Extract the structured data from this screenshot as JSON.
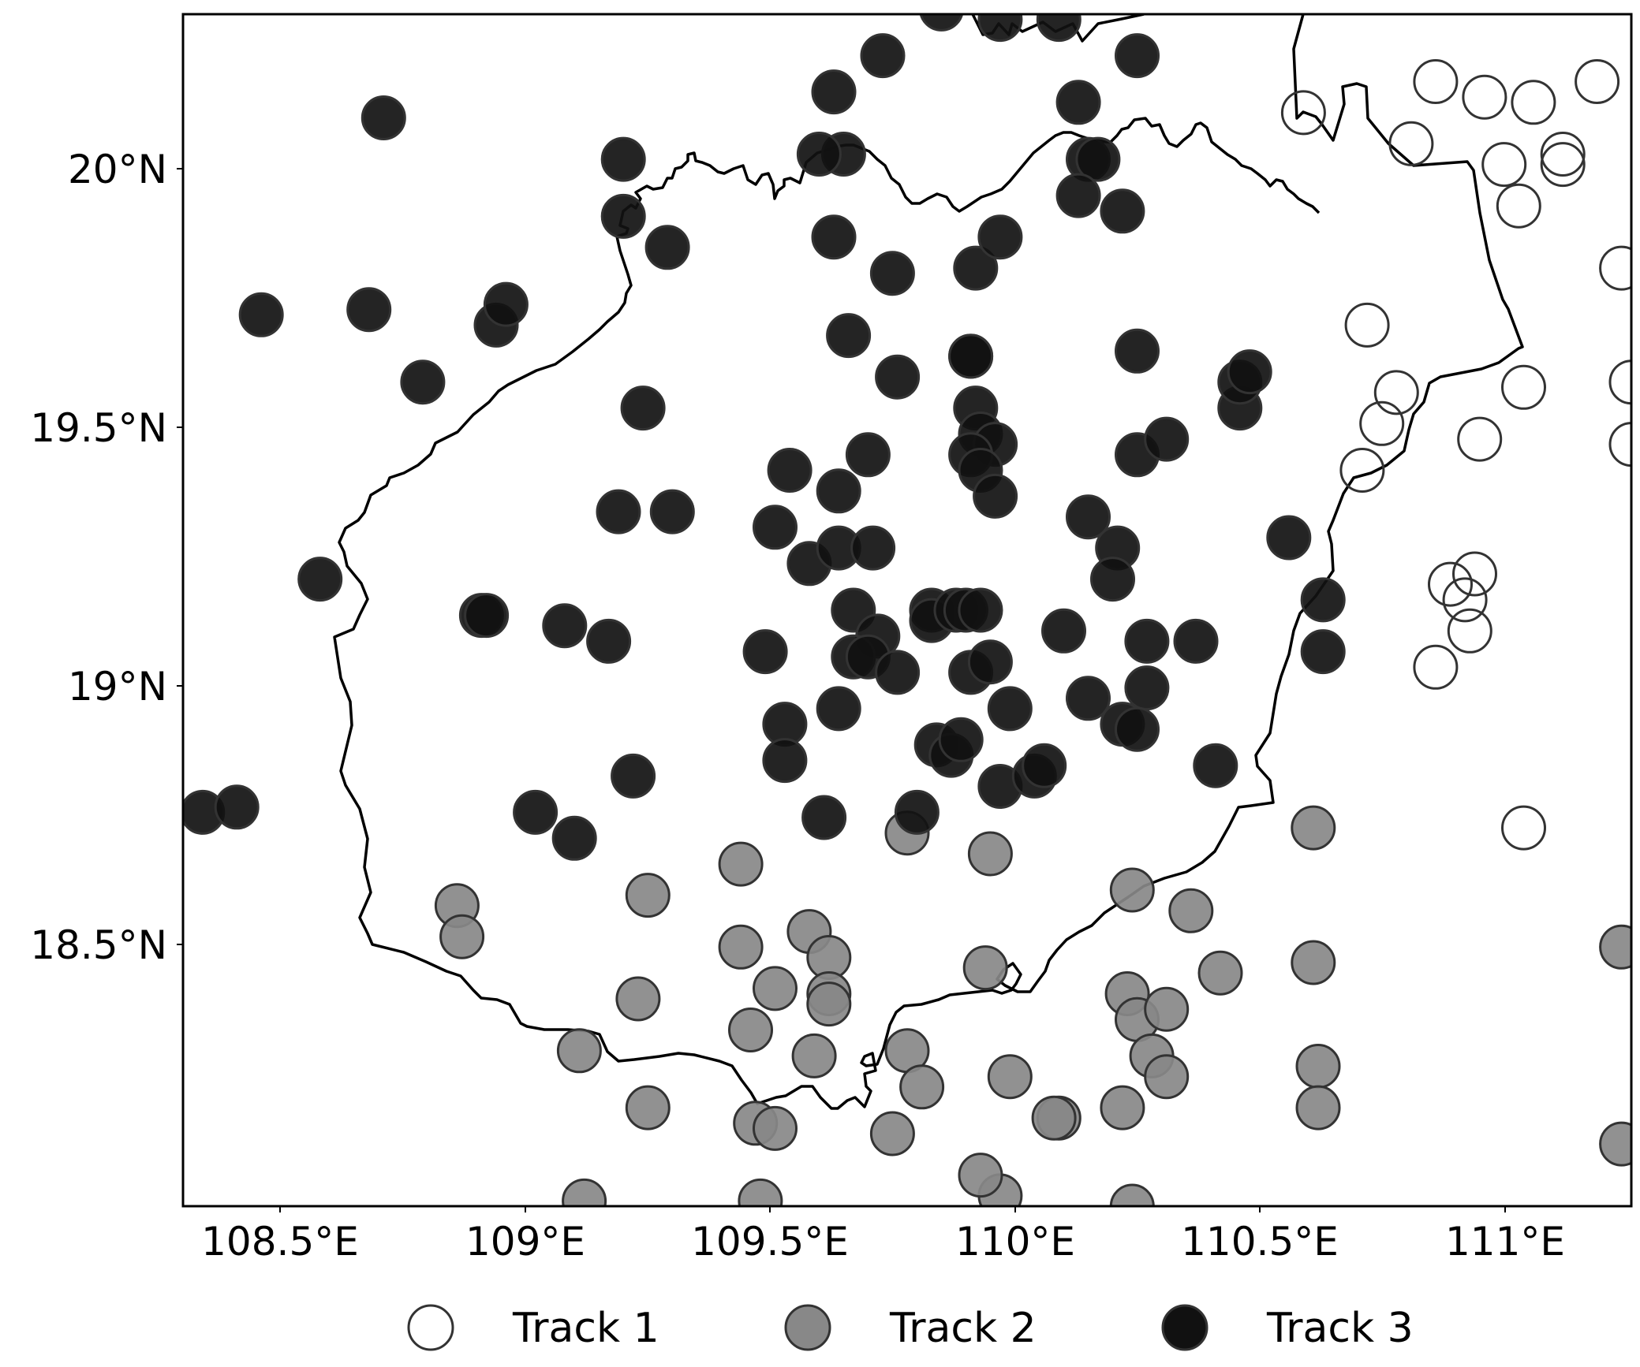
{
  "chart_data": {
    "type": "scatter",
    "map_region": "Hainan Island",
    "xlim": [
      108.31,
      111.27
    ],
    "ylim": [
      18.03,
      20.33
    ],
    "xticks": [
      108.5,
      109.0,
      109.5,
      110.0,
      110.5,
      111.0
    ],
    "yticks": [
      18.5,
      19.0,
      19.5,
      20.0
    ],
    "xtick_labels": [
      "108.5°E",
      "109°E",
      "109.5°E",
      "110°E",
      "110.5°E",
      "111°E"
    ],
    "ytick_labels": [
      "18.5°N",
      "19°N",
      "19.5°N",
      "20°N"
    ],
    "legend_position": "bottom",
    "series": [
      {
        "name": "Track 1",
        "color": "#ffffff",
        "points": [
          [
            110.6,
            20.14
          ],
          [
            110.87,
            20.2
          ],
          [
            110.97,
            20.17
          ],
          [
            111.07,
            20.16
          ],
          [
            111.2,
            20.2
          ],
          [
            110.82,
            20.08
          ],
          [
            111.01,
            20.04
          ],
          [
            111.13,
            20.06
          ],
          [
            111.13,
            20.04
          ],
          [
            111.04,
            19.96
          ],
          [
            111.25,
            19.84
          ],
          [
            110.73,
            19.73
          ],
          [
            110.79,
            19.6
          ],
          [
            110.76,
            19.54
          ],
          [
            110.96,
            19.51
          ],
          [
            111.05,
            19.61
          ],
          [
            111.27,
            19.62
          ],
          [
            111.27,
            19.5
          ],
          [
            110.72,
            19.45
          ],
          [
            110.9,
            19.23
          ],
          [
            110.95,
            19.25
          ],
          [
            110.93,
            19.2
          ],
          [
            110.94,
            19.14
          ],
          [
            110.87,
            19.07
          ],
          [
            111.05,
            18.76
          ]
        ]
      },
      {
        "name": "Track 2",
        "color": "#888888",
        "points": [
          [
            108.87,
            18.61
          ],
          [
            108.88,
            18.55
          ],
          [
            109.26,
            18.63
          ],
          [
            109.24,
            18.43
          ],
          [
            109.12,
            18.33
          ],
          [
            109.26,
            18.22
          ],
          [
            109.13,
            18.04
          ],
          [
            109.45,
            18.69
          ],
          [
            109.45,
            18.53
          ],
          [
            109.52,
            18.45
          ],
          [
            109.47,
            18.37
          ],
          [
            109.59,
            18.56
          ],
          [
            109.63,
            18.51
          ],
          [
            109.63,
            18.44
          ],
          [
            109.6,
            18.32
          ],
          [
            109.63,
            18.42
          ],
          [
            109.79,
            18.75
          ],
          [
            109.96,
            18.71
          ],
          [
            109.95,
            18.49
          ],
          [
            109.79,
            18.33
          ],
          [
            109.82,
            18.26
          ],
          [
            109.76,
            18.17
          ],
          [
            110.0,
            18.28
          ],
          [
            109.98,
            18.05
          ],
          [
            110.1,
            18.2
          ],
          [
            110.09,
            18.2
          ],
          [
            109.94,
            18.09
          ],
          [
            110.25,
            18.64
          ],
          [
            110.37,
            18.6
          ],
          [
            110.43,
            18.48
          ],
          [
            110.24,
            18.44
          ],
          [
            110.26,
            18.39
          ],
          [
            110.32,
            18.41
          ],
          [
            110.29,
            18.32
          ],
          [
            110.32,
            18.28
          ],
          [
            110.23,
            18.22
          ],
          [
            110.25,
            18.03
          ],
          [
            110.62,
            18.76
          ],
          [
            110.62,
            18.5
          ],
          [
            110.63,
            18.3
          ],
          [
            110.63,
            18.22
          ],
          [
            111.25,
            18.53
          ],
          [
            111.25,
            18.15
          ],
          [
            109.48,
            18.19
          ],
          [
            109.52,
            18.18
          ],
          [
            109.49,
            18.04
          ]
        ]
      },
      {
        "name": "Track 3",
        "color": "#111111",
        "points": [
          [
            108.47,
            19.75
          ],
          [
            108.69,
            19.76
          ],
          [
            108.72,
            20.13
          ],
          [
            108.8,
            19.62
          ],
          [
            108.95,
            19.73
          ],
          [
            108.97,
            19.77
          ],
          [
            109.21,
            20.05
          ],
          [
            109.21,
            19.94
          ],
          [
            109.3,
            19.88
          ],
          [
            109.25,
            19.57
          ],
          [
            109.2,
            19.37
          ],
          [
            109.31,
            19.37
          ],
          [
            108.59,
            19.24
          ],
          [
            108.92,
            19.17
          ],
          [
            108.93,
            19.17
          ],
          [
            109.09,
            19.15
          ],
          [
            109.18,
            19.12
          ],
          [
            108.35,
            18.79
          ],
          [
            108.42,
            18.8
          ],
          [
            109.03,
            18.79
          ],
          [
            109.11,
            18.74
          ],
          [
            109.23,
            18.86
          ],
          [
            109.5,
            19.1
          ],
          [
            109.55,
            19.45
          ],
          [
            109.52,
            19.34
          ],
          [
            109.59,
            19.27
          ],
          [
            109.64,
            20.18
          ],
          [
            109.66,
            20.06
          ],
          [
            109.61,
            20.06
          ],
          [
            109.64,
            19.9
          ],
          [
            109.67,
            19.71
          ],
          [
            109.74,
            20.25
          ],
          [
            109.76,
            19.83
          ],
          [
            109.77,
            19.63
          ],
          [
            109.71,
            19.48
          ],
          [
            109.65,
            19.41
          ],
          [
            109.65,
            19.3
          ],
          [
            109.72,
            19.3
          ],
          [
            109.68,
            19.18
          ],
          [
            109.73,
            19.13
          ],
          [
            109.68,
            19.09
          ],
          [
            109.71,
            19.09
          ],
          [
            109.77,
            19.06
          ],
          [
            109.65,
            18.99
          ],
          [
            109.54,
            18.96
          ],
          [
            109.54,
            18.89
          ],
          [
            109.62,
            18.78
          ],
          [
            109.81,
            18.79
          ],
          [
            109.84,
            19.18
          ],
          [
            109.84,
            19.16
          ],
          [
            109.89,
            19.18
          ],
          [
            109.92,
            19.06
          ],
          [
            109.96,
            19.08
          ],
          [
            109.85,
            18.92
          ],
          [
            109.88,
            18.9
          ],
          [
            109.9,
            18.93
          ],
          [
            109.98,
            18.84
          ],
          [
            110.0,
            18.99
          ],
          [
            110.05,
            18.86
          ],
          [
            110.07,
            18.88
          ],
          [
            109.93,
            19.84
          ],
          [
            109.98,
            19.9
          ],
          [
            109.92,
            19.67
          ],
          [
            109.92,
            19.67
          ],
          [
            109.93,
            19.57
          ],
          [
            109.94,
            19.52
          ],
          [
            109.97,
            19.5
          ],
          [
            109.92,
            19.48
          ],
          [
            109.94,
            19.45
          ],
          [
            109.97,
            19.4
          ],
          [
            109.91,
            19.18
          ],
          [
            109.94,
            19.18
          ],
          [
            110.11,
            19.14
          ],
          [
            110.14,
            20.16
          ],
          [
            110.16,
            20.05
          ],
          [
            110.18,
            20.05
          ],
          [
            110.14,
            19.98
          ],
          [
            110.23,
            19.95
          ],
          [
            110.26,
            20.25
          ],
          [
            110.26,
            19.68
          ],
          [
            110.26,
            19.48
          ],
          [
            110.32,
            19.51
          ],
          [
            110.16,
            19.36
          ],
          [
            110.22,
            19.3
          ],
          [
            110.21,
            19.24
          ],
          [
            110.28,
            19.12
          ],
          [
            110.16,
            19.01
          ],
          [
            110.28,
            19.03
          ],
          [
            110.23,
            18.96
          ],
          [
            110.26,
            18.95
          ],
          [
            110.38,
            19.12
          ],
          [
            110.42,
            18.88
          ],
          [
            110.47,
            19.57
          ],
          [
            110.47,
            19.62
          ],
          [
            110.49,
            19.64
          ],
          [
            110.57,
            19.32
          ],
          [
            110.64,
            19.2
          ],
          [
            110.64,
            19.1
          ],
          [
            109.86,
            20.34
          ],
          [
            109.98,
            20.32
          ],
          [
            110.1,
            20.32
          ]
        ]
      }
    ]
  }
}
